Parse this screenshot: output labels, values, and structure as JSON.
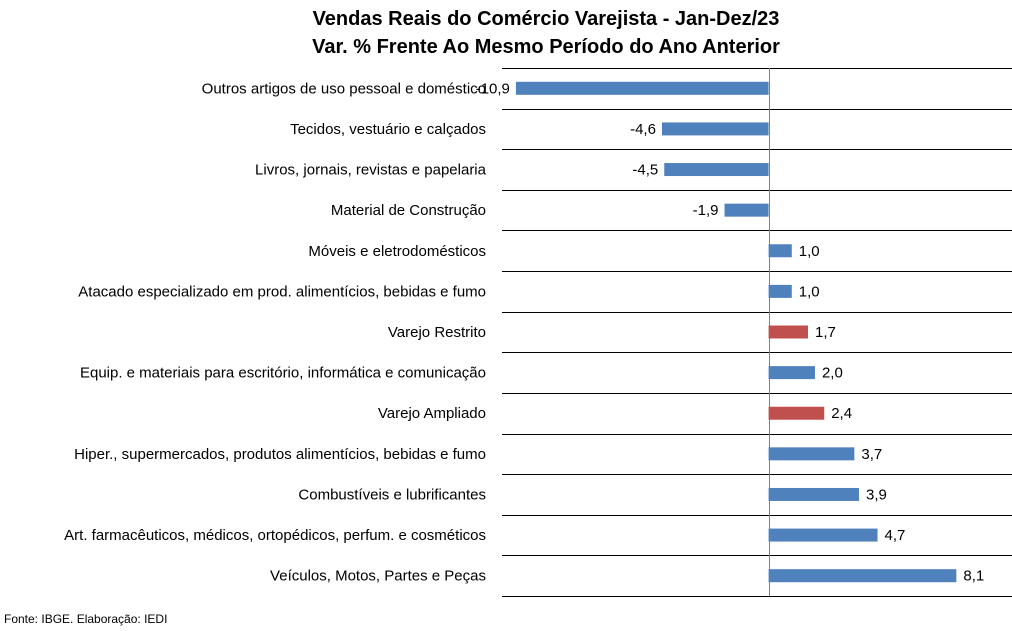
{
  "chart_data": {
    "type": "bar",
    "orientation": "horizontal",
    "title": "Vendas Reais do Comércio Varejista - Jan-Dez/23",
    "subtitle": "Var. % Frente Ao Mesmo Período do Ano Anterior",
    "categories": [
      "Outros artigos de uso pessoal e doméstico",
      "Tecidos, vestuário e calçados",
      "Livros, jornais, revistas e papelaria",
      "Material de Construção",
      "Móveis e eletrodomésticos",
      "Atacado especializado em prod. alimentícios, bebidas e fumo",
      "Varejo Restrito",
      "Equip. e materiais para escritório, informática e comunicação",
      "Varejo Ampliado",
      "Hiper., supermercados, produtos alimentícios, bebidas e fumo",
      "Combustíveis e lubrificantes",
      "Art. farmacêuticos, médicos, ortopédicos, perfum. e cosméticos",
      "Veículos, Motos, Partes e Peças"
    ],
    "values": [
      -10.9,
      -4.6,
      -4.5,
      -1.9,
      1.0,
      1.0,
      1.7,
      2.0,
      2.4,
      3.7,
      3.9,
      4.7,
      8.1
    ],
    "data_labels": [
      "-10,9",
      "-4,6",
      "-4,5",
      "-1,9",
      "1,0",
      "1,0",
      "1,7",
      "2,0",
      "2,4",
      "3,7",
      "3,9",
      "4,7",
      "8,1"
    ],
    "highlighted": [
      false,
      false,
      false,
      false,
      false,
      false,
      true,
      false,
      true,
      false,
      false,
      false,
      false
    ],
    "colors": {
      "default": "#4F81BD",
      "highlight": "#C0504D",
      "grid": "#000000"
    },
    "xlim": [
      -11.5,
      10.5
    ],
    "grid": "horizontal lines between categories"
  },
  "footer": {
    "source": "Fonte: IBGE. Elaboração: IEDI"
  }
}
